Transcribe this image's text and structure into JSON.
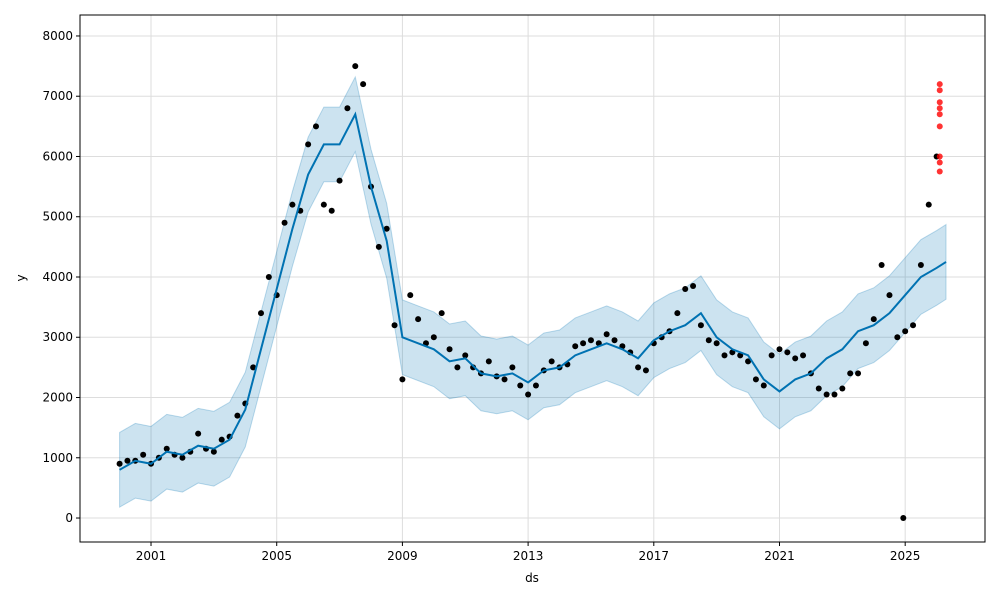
{
  "chart_data": {
    "type": "scatter",
    "title": "",
    "xlabel": "ds",
    "ylabel": "y",
    "xlim": [
      1998.74,
      2027.54
    ],
    "ylim": [
      -398,
      8348
    ],
    "x_ticks": [
      "2001",
      "2005",
      "2009",
      "2013",
      "2017",
      "2021",
      "2025"
    ],
    "x_tick_values": [
      2001,
      2005,
      2009,
      2013,
      2017,
      2021,
      2025
    ],
    "y_ticks": [
      0,
      1000,
      2000,
      3000,
      4000,
      5000,
      6000,
      7000,
      8000
    ],
    "grid": true,
    "colors": {
      "observed": "#000000",
      "forecast": "#0072B2",
      "interval": "#0072B2",
      "outliers": "#ff0000"
    },
    "observed": {
      "x": [
        2000.0,
        2000.25,
        2000.5,
        2000.75,
        2001.0,
        2001.25,
        2001.5,
        2001.75,
        2002.0,
        2002.25,
        2002.5,
        2002.75,
        2003.0,
        2003.25,
        2003.5,
        2003.75,
        2004.0,
        2004.25,
        2004.5,
        2004.75,
        2005.0,
        2005.25,
        2005.5,
        2005.75,
        2006.0,
        2006.25,
        2006.5,
        2006.75,
        2007.0,
        2007.25,
        2007.5,
        2007.75,
        2008.0,
        2008.25,
        2008.5,
        2008.75,
        2009.0,
        2009.25,
        2009.5,
        2009.75,
        2010.0,
        2010.25,
        2010.5,
        2010.75,
        2011.0,
        2011.25,
        2011.5,
        2011.75,
        2012.0,
        2012.25,
        2012.5,
        2012.75,
        2013.0,
        2013.25,
        2013.5,
        2013.75,
        2014.0,
        2014.25,
        2014.5,
        2014.75,
        2015.0,
        2015.25,
        2015.5,
        2015.75,
        2016.0,
        2016.25,
        2016.5,
        2016.75,
        2017.0,
        2017.25,
        2017.5,
        2017.75,
        2018.0,
        2018.25,
        2018.5,
        2018.75,
        2019.0,
        2019.25,
        2019.5,
        2019.75,
        2020.0,
        2020.25,
        2020.5,
        2020.75,
        2021.0,
        2021.25,
        2021.5,
        2021.75,
        2022.0,
        2022.25,
        2022.5,
        2022.75,
        2023.0,
        2023.25,
        2023.5,
        2023.75,
        2024.0,
        2024.25,
        2024.5,
        2024.75,
        2024.94,
        2025.0,
        2025.25,
        2025.5,
        2025.75,
        2026.0
      ],
      "y": [
        900,
        950,
        950,
        1050,
        900,
        1000,
        1150,
        1050,
        1000,
        1100,
        1400,
        1150,
        1100,
        1300,
        1350,
        1700,
        1900,
        2500,
        3400,
        4000,
        3700,
        4900,
        5200,
        5100,
        6200,
        6500,
        5200,
        5100,
        5600,
        6800,
        7500,
        7200,
        5500,
        4500,
        4800,
        3200,
        2300,
        3700,
        3300,
        2900,
        3000,
        3400,
        2800,
        2500,
        2700,
        2500,
        2400,
        2600,
        2350,
        2300,
        2500,
        2200,
        2050,
        2200,
        2450,
        2600,
        2500,
        2550,
        2850,
        2900,
        2950,
        2900,
        3050,
        2950,
        2850,
        2750,
        2500,
        2450,
        2900,
        3000,
        3100,
        3400,
        3800,
        3850,
        3200,
        2950,
        2900,
        2700,
        2750,
        2700,
        2600,
        2300,
        2200,
        2700,
        2800,
        2750,
        2650,
        2700,
        2400,
        2150,
        2050,
        2050,
        2150,
        2400,
        2400,
        2900,
        3300,
        4200,
        3700,
        3000,
        0,
        3100,
        3200,
        4200,
        5200,
        6000
      ]
    },
    "outliers": {
      "x": [
        2026.1,
        2026.1,
        2026.1,
        2026.1,
        2026.1,
        2026.1,
        2026.1,
        2026.1,
        2026.1
      ],
      "y": [
        7200,
        7100,
        6900,
        6800,
        6700,
        6500,
        6000,
        5900,
        5750
      ]
    },
    "forecast": {
      "x": [
        2000.0,
        2000.5,
        2001.0,
        2001.5,
        2002.0,
        2002.5,
        2003.0,
        2003.5,
        2004.0,
        2004.5,
        2005.0,
        2005.5,
        2006.0,
        2006.5,
        2007.0,
        2007.5,
        2008.0,
        2008.5,
        2009.0,
        2009.5,
        2010.0,
        2010.5,
        2011.0,
        2011.5,
        2012.0,
        2012.5,
        2013.0,
        2013.5,
        2014.0,
        2014.5,
        2015.0,
        2015.5,
        2016.0,
        2016.5,
        2017.0,
        2017.5,
        2018.0,
        2018.5,
        2019.0,
        2019.5,
        2020.0,
        2020.5,
        2021.0,
        2021.5,
        2022.0,
        2022.5,
        2023.0,
        2023.5,
        2024.0,
        2024.5,
        2025.0,
        2025.5,
        2026.0,
        2026.3
      ],
      "yhat": [
        800,
        950,
        900,
        1100,
        1050,
        1200,
        1150,
        1300,
        1800,
        2800,
        3800,
        4800,
        5700,
        6200,
        6200,
        6700,
        5500,
        4600,
        3000,
        2900,
        2800,
        2600,
        2650,
        2400,
        2350,
        2400,
        2250,
        2450,
        2500,
        2700,
        2800,
        2900,
        2800,
        2650,
        2950,
        3100,
        3200,
        3400,
        3000,
        2800,
        2700,
        2300,
        2100,
        2300,
        2400,
        2650,
        2800,
        3100,
        3200,
        3400,
        3700,
        4000,
        4150,
        4250
      ],
      "yhat_lower": [
        180,
        330,
        280,
        480,
        430,
        580,
        530,
        680,
        1180,
        2180,
        3180,
        4180,
        5080,
        5580,
        5580,
        6080,
        4880,
        3980,
        2380,
        2280,
        2180,
        1980,
        2030,
        1780,
        1730,
        1780,
        1630,
        1830,
        1880,
        2080,
        2180,
        2280,
        2180,
        2030,
        2330,
        2480,
        2580,
        2780,
        2380,
        2180,
        2080,
        1680,
        1480,
        1680,
        1780,
        2030,
        2180,
        2480,
        2580,
        2780,
        3080,
        3380,
        3530,
        3630
      ],
      "yhat_upper": [
        1420,
        1570,
        1520,
        1720,
        1670,
        1820,
        1770,
        1920,
        2420,
        3420,
        4420,
        5420,
        6320,
        6820,
        6820,
        7320,
        6120,
        5220,
        3620,
        3520,
        3420,
        3220,
        3270,
        3020,
        2970,
        3020,
        2870,
        3070,
        3120,
        3320,
        3420,
        3520,
        3420,
        3270,
        3570,
        3720,
        3820,
        4020,
        3620,
        3420,
        3320,
        2920,
        2720,
        2920,
        3020,
        3270,
        3420,
        3720,
        3820,
        4020,
        4320,
        4620,
        4770,
        4870
      ]
    }
  }
}
